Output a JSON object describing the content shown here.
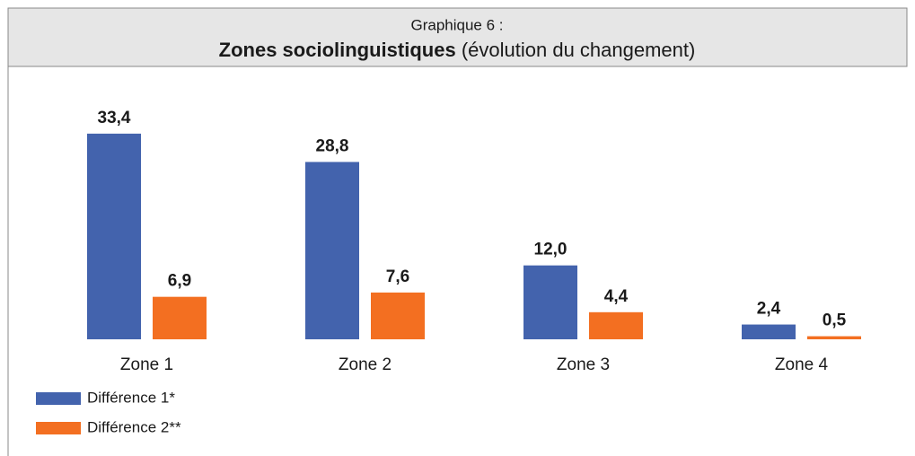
{
  "chart_data": {
    "type": "bar",
    "title": "Graphique 6 :",
    "subtitle": "Zones sociolinguistiques",
    "subtitle_note": "(évolution du changement)",
    "categories": [
      "Zone 1",
      "Zone 2",
      "Zone 3",
      "Zone 4"
    ],
    "series": [
      {
        "name": "Différence 1*",
        "color": "#4363ad",
        "values": [
          33.4,
          28.8,
          12.0,
          2.4
        ],
        "value_labels": [
          "33,4",
          "28,8",
          "12,0",
          "2,4"
        ]
      },
      {
        "name": "Différence 2**",
        "color": "#f36f21",
        "values": [
          6.9,
          7.6,
          4.4,
          0.5
        ],
        "value_labels": [
          "6,9",
          "7,6",
          "4,4",
          "0,5"
        ]
      }
    ]
  }
}
